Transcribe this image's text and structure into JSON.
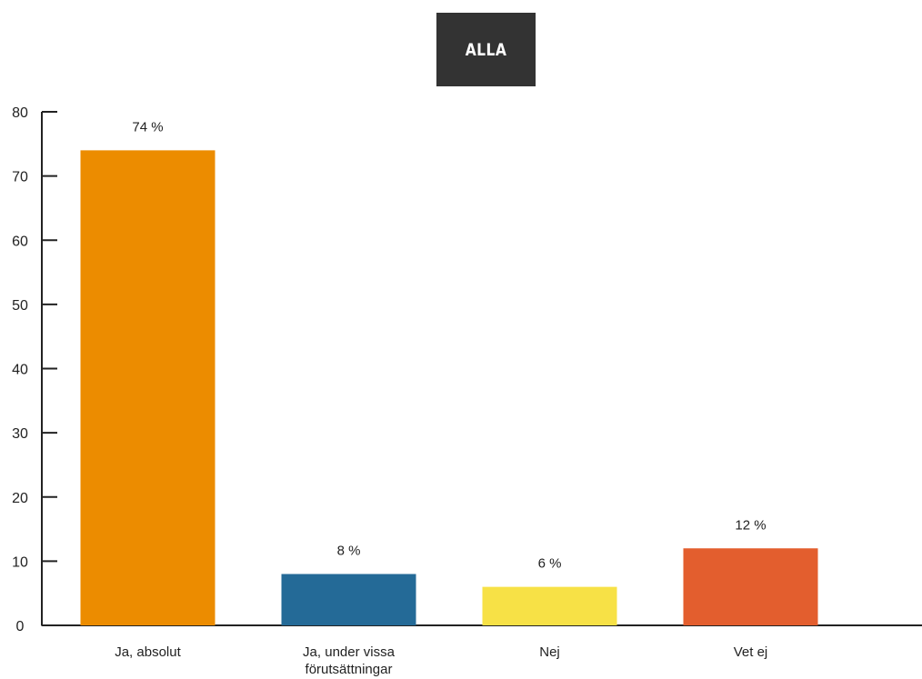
{
  "filter": {
    "label": "ALLA"
  },
  "chart_data": {
    "type": "bar",
    "categories": [
      "Ja, absolut",
      "Ja, under vissa förutsättningar",
      "Nej",
      "Vet ej"
    ],
    "values": [
      74,
      8,
      6,
      12
    ],
    "value_labels": [
      "74 %",
      "8 %",
      "6 %",
      "12 %"
    ],
    "colors": [
      "#EC8C00",
      "#246A97",
      "#F7E146",
      "#E35E2E"
    ],
    "ylim": [
      0,
      80
    ],
    "yticks": [
      0,
      10,
      20,
      30,
      40,
      50,
      60,
      70,
      80
    ],
    "grid": false,
    "title": "",
    "xlabel": "",
    "ylabel": ""
  }
}
